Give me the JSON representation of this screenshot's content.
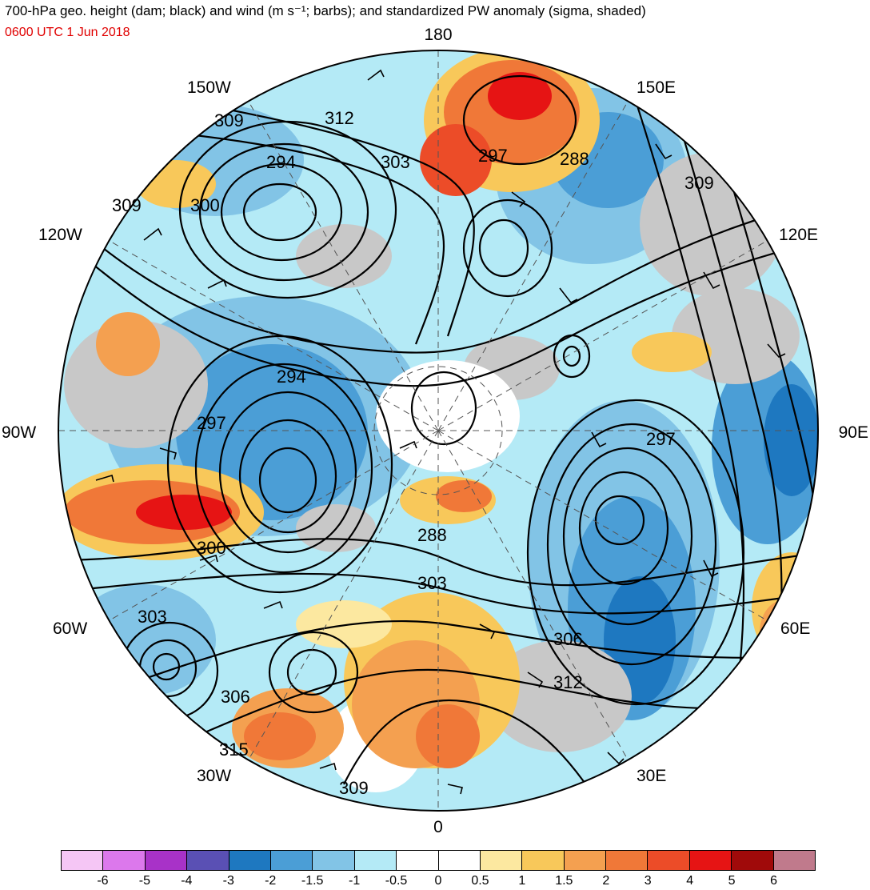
{
  "title": "700-hPa geo. height (dam; black) and wind (m s⁻¹; barbs); and standardized PW anomaly (sigma, shaded)",
  "valid_time": "0600 UTC 1 Jun 2018",
  "longitude_labels": {
    "top": "180",
    "bottom": "0",
    "left": "90W",
    "right": "90E",
    "upper_left_1": "150W",
    "upper_left_2": "120W",
    "upper_right_1": "150E",
    "upper_right_2": "120E",
    "lower_left_1": "60W",
    "lower_left_2": "30W",
    "lower_right_1": "60E",
    "lower_right_2": "30E"
  },
  "height_contour_labels": [
    "309",
    "312",
    "294",
    "303",
    "297",
    "288",
    "309",
    "309",
    "300",
    "294",
    "297",
    "297",
    "288",
    "300",
    "303",
    "303",
    "306",
    "312",
    "306",
    "315",
    "309"
  ],
  "colorbar": {
    "colors": [
      "#f5c6f5",
      "#dc78ec",
      "#a832c8",
      "#5a50b4",
      "#1e78c0",
      "#4b9ed6",
      "#82c4e6",
      "#b4eaf6",
      "#ffffff",
      "#ffffff",
      "#fce8a0",
      "#f8c85a",
      "#f4a050",
      "#f07838",
      "#ec4c28",
      "#e61414",
      "#a00a0a",
      "#c07a8c"
    ],
    "tick_labels": [
      "-6",
      "-5",
      "-4",
      "-3",
      "-2",
      "-1.5",
      "-1",
      "-0.5",
      "0",
      "0.5",
      "1",
      "1.5",
      "2",
      "3",
      "4",
      "5",
      "6"
    ]
  }
}
